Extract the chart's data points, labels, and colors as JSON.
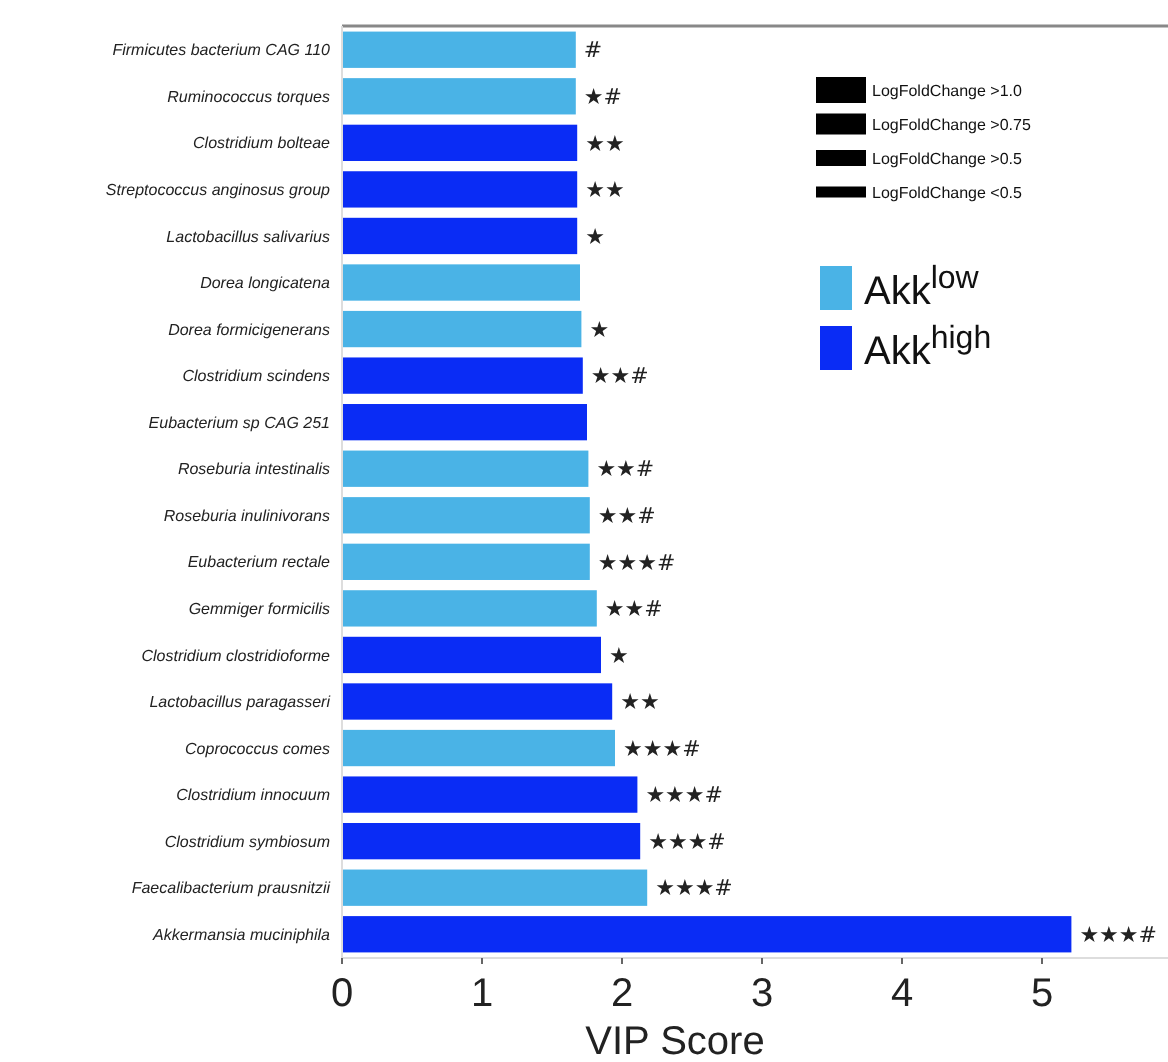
{
  "chart_data": {
    "type": "bar",
    "orientation": "horizontal",
    "categories": [
      "Firmicutes bacterium CAG 110",
      "Ruminococcus torques",
      "Clostridium bolteae",
      "Streptococcus anginosus group",
      "Lactobacillus salivarius",
      "Dorea longicatena",
      "Dorea formicigenerans",
      "Clostridium scindens",
      "Eubacterium sp CAG 251",
      "Roseburia intestinalis",
      "Roseburia inulinivorans",
      "Eubacterium rectale",
      "Gemmiger formicilis",
      "Clostridium clostridioforme",
      "Lactobacillus paragasseri",
      "Coprococcus comes",
      "Clostridium innocuum",
      "Clostridium symbiosum",
      "Faecalibacterium prausnitzii",
      "Akkermansia muciniphila"
    ],
    "series": [
      {
        "name": "Akk$^{low}$",
        "color": "#4ab3e6",
        "values": [
          1.67,
          1.67,
          null,
          null,
          null,
          1.7,
          1.71,
          null,
          null,
          1.76,
          1.77,
          1.77,
          1.82,
          null,
          null,
          1.95,
          null,
          null,
          2.18,
          null
        ],
        "value_labels": [
          "#",
          "★#",
          null,
          null,
          null,
          null,
          "★",
          null,
          null,
          "★★#",
          "★★#",
          "★★★#",
          "★★#",
          null,
          null,
          "★★★#",
          null,
          null,
          "★★★#",
          null
        ]
      },
      {
        "name": "Akk$^{high}$",
        "color": "#0a2cf5",
        "values": [
          null,
          null,
          1.68,
          1.68,
          1.68,
          null,
          null,
          1.72,
          1.75,
          null,
          null,
          null,
          null,
          1.85,
          1.93,
          null,
          2.11,
          2.13,
          null,
          5.21
        ],
        "value_labels": [
          null,
          null,
          "★★",
          "★★",
          "★",
          null,
          null,
          "★★#",
          null,
          null,
          null,
          null,
          null,
          "★",
          "★★",
          null,
          "★★★#",
          "★★★#",
          null,
          "★★★#"
        ]
      }
    ],
    "xlim": [
      0,
      5.9
    ],
    "xticks": [
      0,
      1,
      2,
      3,
      4,
      5
    ],
    "xlabel": "VIP Score",
    "legend": "top right",
    "annotations": [
      "LogFoldChange >1.0",
      "LogFoldChange >0.75",
      "LogFoldChange >0.5",
      "LogFoldChange <0.5"
    ]
  }
}
